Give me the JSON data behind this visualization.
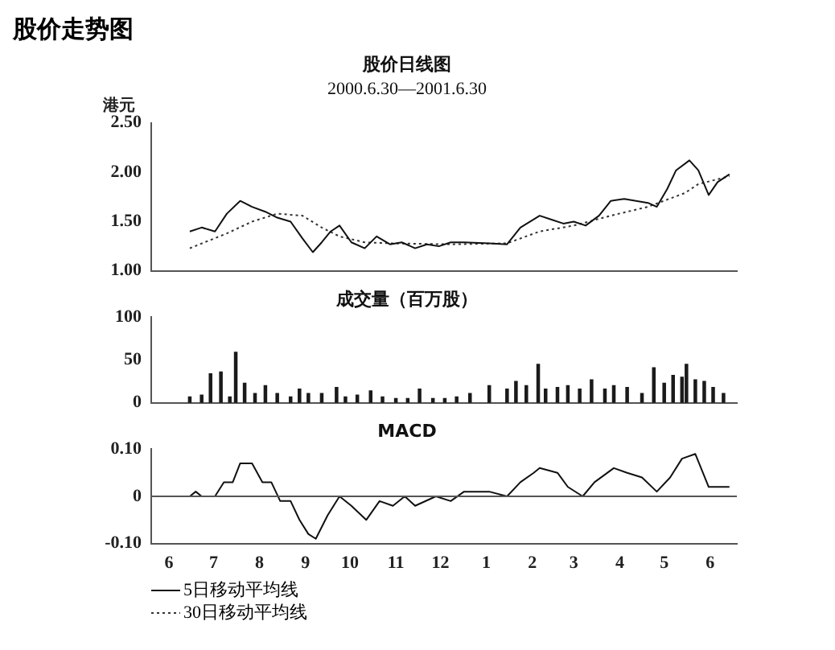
{
  "chart_data": [
    {
      "type": "line",
      "title": "股价日线图",
      "subtitle": "2000.6.30—2001.6.30",
      "ylabel": "港元",
      "annotations": [
        "股价走势图"
      ],
      "xlim": [
        "2000-06-03",
        "2001-07-03"
      ],
      "ylim": [
        1,
        2.5
      ],
      "yticks": [
        {
          "value": 1,
          "label": "1.00"
        },
        {
          "value": 1.5,
          "label": "1.50"
        },
        {
          "value": 2,
          "label": "2.00"
        },
        {
          "value": 2.5,
          "label": "2.50"
        }
      ],
      "tick_labels": "y",
      "grid": false,
      "legend": "bottom left",
      "marker": "none",
      "series": [
        {
          "name": "5日移动平均线",
          "color": "#111111",
          "line_style": "solid",
          "x": [
            "2000-06-29",
            "2000-07-07",
            "2000-07-16",
            "2000-07-24",
            "2000-08-02",
            "2000-08-10",
            "2000-08-19",
            "2000-08-27",
            "2000-09-05",
            "2000-09-13",
            "2000-09-20",
            "2000-09-26",
            "2000-10-02",
            "2000-10-08",
            "2000-10-16",
            "2000-10-25",
            "2000-11-02",
            "2000-11-11",
            "2000-11-19",
            "2000-11-28",
            "2000-12-06",
            "2000-12-14",
            "2000-12-22",
            "2000-12-31",
            "2001-01-17",
            "2001-01-29",
            "2001-02-07",
            "2001-02-20",
            "2001-02-28",
            "2001-03-08",
            "2001-03-15",
            "2001-03-23",
            "2001-04-01",
            "2001-04-09",
            "2001-04-18",
            "2001-04-26",
            "2001-05-04",
            "2001-05-10",
            "2001-05-17",
            "2001-05-23",
            "2001-06-01",
            "2001-06-07",
            "2001-06-14",
            "2001-06-20",
            "2001-06-28"
          ],
          "values": [
            1.4,
            1.44,
            1.4,
            1.58,
            1.71,
            1.65,
            1.6,
            1.54,
            1.5,
            1.33,
            1.19,
            1.29,
            1.4,
            1.46,
            1.29,
            1.23,
            1.35,
            1.27,
            1.29,
            1.23,
            1.27,
            1.25,
            1.29,
            1.29,
            1.28,
            1.27,
            1.44,
            1.56,
            1.52,
            1.48,
            1.5,
            1.46,
            1.56,
            1.71,
            1.73,
            1.71,
            1.69,
            1.65,
            1.83,
            2.02,
            2.12,
            2.02,
            1.77,
            1.9,
            1.98
          ]
        },
        {
          "name": "30日移动平均线",
          "color": "#333333",
          "line_style": "dotted",
          "x": [
            "2000-06-29",
            "2000-07-24",
            "2000-08-10",
            "2000-08-27",
            "2000-09-13",
            "2000-09-26",
            "2000-10-08",
            "2000-10-25",
            "2000-11-11",
            "2000-12-22",
            "2001-01-29",
            "2001-02-20",
            "2001-03-15",
            "2001-04-09",
            "2001-05-04",
            "2001-05-29",
            "2001-06-07",
            "2001-06-28"
          ],
          "values": [
            1.23,
            1.38,
            1.5,
            1.58,
            1.56,
            1.44,
            1.35,
            1.29,
            1.28,
            1.27,
            1.28,
            1.4,
            1.46,
            1.56,
            1.65,
            1.79,
            1.88,
            1.96
          ]
        }
      ]
    },
    {
      "type": "bar",
      "title": "成交量（百万股）",
      "xlim": [
        "2000-06-03",
        "2001-07-03"
      ],
      "ylim": [
        0,
        100
      ],
      "yticks": [
        0,
        50,
        100
      ],
      "tick_labels": "y",
      "grid": false,
      "series": [
        {
          "color": "#1a1a1a",
          "x": [
            "2000-06-29",
            "2000-07-07",
            "2000-07-13",
            "2000-07-20",
            "2000-07-26",
            "2000-07-30",
            "2000-08-05",
            "2000-08-12",
            "2000-08-19",
            "2000-08-27",
            "2000-09-05",
            "2000-09-11",
            "2000-09-17",
            "2000-09-26",
            "2000-10-06",
            "2000-10-12",
            "2000-10-20",
            "2000-10-29",
            "2000-11-06",
            "2000-11-15",
            "2000-11-23",
            "2000-12-01",
            "2000-12-10",
            "2000-12-18",
            "2000-12-26",
            "2001-01-04",
            "2001-01-17",
            "2001-01-29",
            "2001-02-04",
            "2001-02-11",
            "2001-02-19",
            "2001-02-24",
            "2001-03-04",
            "2001-03-11",
            "2001-03-19",
            "2001-03-27",
            "2001-04-05",
            "2001-04-11",
            "2001-04-20",
            "2001-04-30",
            "2001-05-08",
            "2001-05-15",
            "2001-05-21",
            "2001-05-27",
            "2001-05-30",
            "2001-06-05",
            "2001-06-11",
            "2001-06-17",
            "2001-06-24"
          ],
          "values": [
            7,
            9,
            34,
            36,
            7,
            59,
            23,
            11,
            20,
            11,
            7,
            16,
            11,
            11,
            18,
            7,
            9,
            14,
            7,
            5,
            5,
            16,
            5,
            5,
            7,
            11,
            20,
            16,
            25,
            20,
            45,
            16,
            18,
            20,
            16,
            27,
            16,
            20,
            18,
            11,
            41,
            23,
            32,
            30,
            45,
            27,
            25,
            18,
            11
          ]
        }
      ]
    },
    {
      "type": "line",
      "title": "MACD",
      "xlim": [
        "2000-06-03",
        "2001-07-03"
      ],
      "ylim": [
        -0.1,
        0.1
      ],
      "yticks": [
        {
          "value": -0.1,
          "label": "-0.10"
        },
        0,
        {
          "value": 0.1,
          "label": "0.10"
        }
      ],
      "xticks": [
        {
          "value": "2000-06-15",
          "label": "6"
        },
        {
          "value": "2000-07-15",
          "label": "7"
        },
        {
          "value": "2000-08-15",
          "label": "8"
        },
        {
          "value": "2000-09-15",
          "label": "9"
        },
        {
          "value": "2000-10-15",
          "label": "10"
        },
        {
          "value": "2000-11-15",
          "label": "11"
        },
        {
          "value": "2000-12-15",
          "label": "12"
        },
        {
          "value": "2001-01-15",
          "label": "1"
        },
        {
          "value": "2001-02-15",
          "label": "2"
        },
        {
          "value": "2001-03-15",
          "label": "3"
        },
        {
          "value": "2001-04-15",
          "label": "4"
        },
        {
          "value": "2001-05-15",
          "label": "5"
        },
        {
          "value": "2001-06-15",
          "label": "6"
        }
      ],
      "grid": false,
      "marker": "none",
      "ref_lines": [
        {
          "axis": "y",
          "value": 0,
          "color": "#555555"
        }
      ],
      "series": [
        {
          "color": "#111111",
          "x": [
            "2000-06-29",
            "2000-07-03",
            "2000-07-07",
            "2000-07-16",
            "2000-07-22",
            "2000-07-28",
            "2000-08-02",
            "2000-08-10",
            "2000-08-17",
            "2000-08-23",
            "2000-08-29",
            "2000-09-05",
            "2000-09-11",
            "2000-09-17",
            "2000-09-22",
            "2000-09-30",
            "2000-10-08",
            "2000-10-16",
            "2000-10-26",
            "2000-11-04",
            "2000-11-13",
            "2000-11-21",
            "2000-11-28",
            "2000-12-12",
            "2000-12-22",
            "2000-12-31",
            "2001-01-17",
            "2001-01-29",
            "2001-02-07",
            "2001-02-16",
            "2001-02-20",
            "2001-03-04",
            "2001-03-11",
            "2001-03-21",
            "2001-03-29",
            "2001-04-11",
            "2001-04-20",
            "2001-04-30",
            "2001-05-10",
            "2001-05-19",
            "2001-05-27",
            "2001-06-05",
            "2001-06-14",
            "2001-06-20",
            "2001-06-28"
          ],
          "values": [
            0.0,
            0.01,
            0.0,
            0.0,
            0.03,
            0.03,
            0.07,
            0.07,
            0.03,
            0.03,
            -0.01,
            -0.01,
            -0.05,
            -0.08,
            -0.09,
            -0.04,
            0.0,
            -0.02,
            -0.05,
            -0.01,
            -0.02,
            0.0,
            -0.02,
            0.0,
            -0.01,
            0.01,
            0.01,
            0.0,
            0.03,
            0.05,
            0.06,
            0.05,
            0.02,
            0.0,
            0.03,
            0.06,
            0.05,
            0.04,
            0.01,
            0.04,
            0.08,
            0.09,
            0.02,
            0.02,
            0.02
          ]
        }
      ]
    }
  ]
}
